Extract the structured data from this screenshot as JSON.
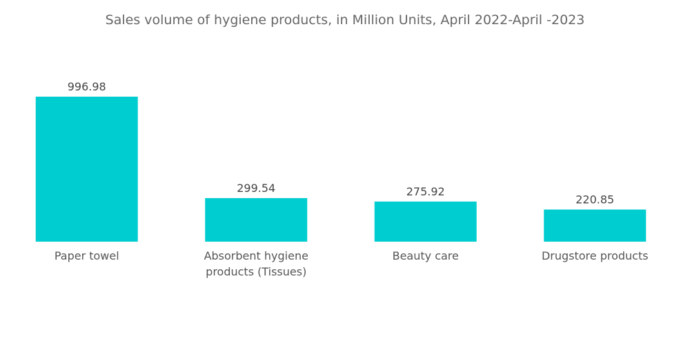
{
  "chart_data": {
    "type": "bar",
    "title": "Sales volume of hygiene products, in Million Units, April 2022-April -2023",
    "categories": [
      "Paper towel",
      "Absorbent hygiene products (Tissues)",
      "Beauty care",
      "Drugstore products"
    ],
    "values": [
      996.98,
      299.54,
      275.92,
      220.85
    ],
    "value_labels": [
      "996.98",
      "299.54",
      "275.92",
      "220.85"
    ],
    "color": "#00cdd0"
  }
}
